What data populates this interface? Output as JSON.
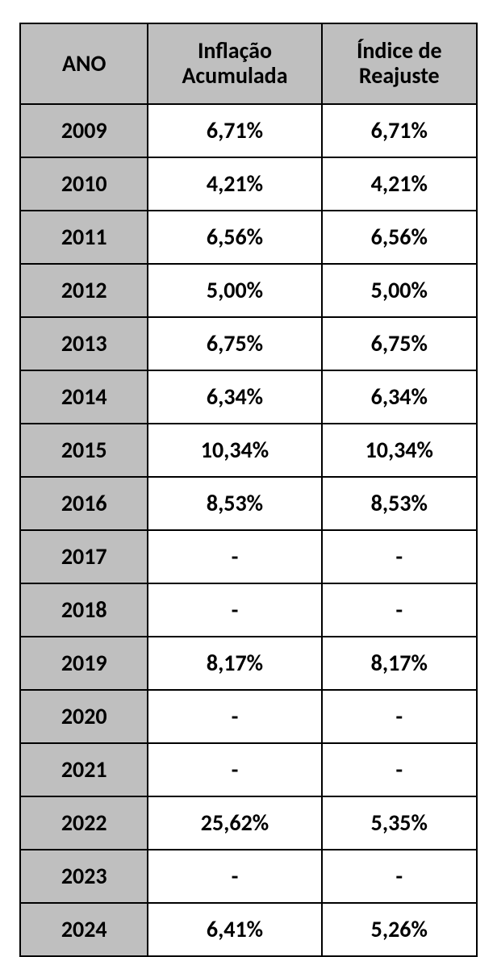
{
  "table": {
    "columns": [
      "ANO",
      "Inflação Acumulada",
      "Índice de Reajuste"
    ],
    "rows": [
      {
        "ano": "2009",
        "inflacao": "6,71%",
        "indice": "6,71%"
      },
      {
        "ano": "2010",
        "inflacao": "4,21%",
        "indice": "4,21%"
      },
      {
        "ano": "2011",
        "inflacao": "6,56%",
        "indice": "6,56%"
      },
      {
        "ano": "2012",
        "inflacao": "5,00%",
        "indice": "5,00%"
      },
      {
        "ano": "2013",
        "inflacao": "6,75%",
        "indice": "6,75%"
      },
      {
        "ano": "2014",
        "inflacao": "6,34%",
        "indice": "6,34%"
      },
      {
        "ano": "2015",
        "inflacao": "10,34%",
        "indice": "10,34%"
      },
      {
        "ano": "2016",
        "inflacao": "8,53%",
        "indice": "8,53%"
      },
      {
        "ano": "2017",
        "inflacao": "-",
        "indice": "-"
      },
      {
        "ano": "2018",
        "inflacao": "-",
        "indice": "-"
      },
      {
        "ano": "2019",
        "inflacao": "8,17%",
        "indice": "8,17%"
      },
      {
        "ano": "2020",
        "inflacao": "-",
        "indice": "-"
      },
      {
        "ano": "2021",
        "inflacao": "-",
        "indice": "-"
      },
      {
        "ano": "2022",
        "inflacao": "25,62%",
        "indice": "5,35%"
      },
      {
        "ano": "2023",
        "inflacao": "-",
        "indice": "-"
      },
      {
        "ano": "2024",
        "inflacao": "6,41%",
        "indice": "5,26%"
      }
    ],
    "colors": {
      "header_bg": "#bfbfbf",
      "year_bg": "#bfbfbf",
      "cell_bg": "#ffffff",
      "border": "#000000",
      "text": "#000000"
    },
    "font": {
      "family": "Calibri",
      "weight": "bold",
      "size_pt": 20
    }
  }
}
